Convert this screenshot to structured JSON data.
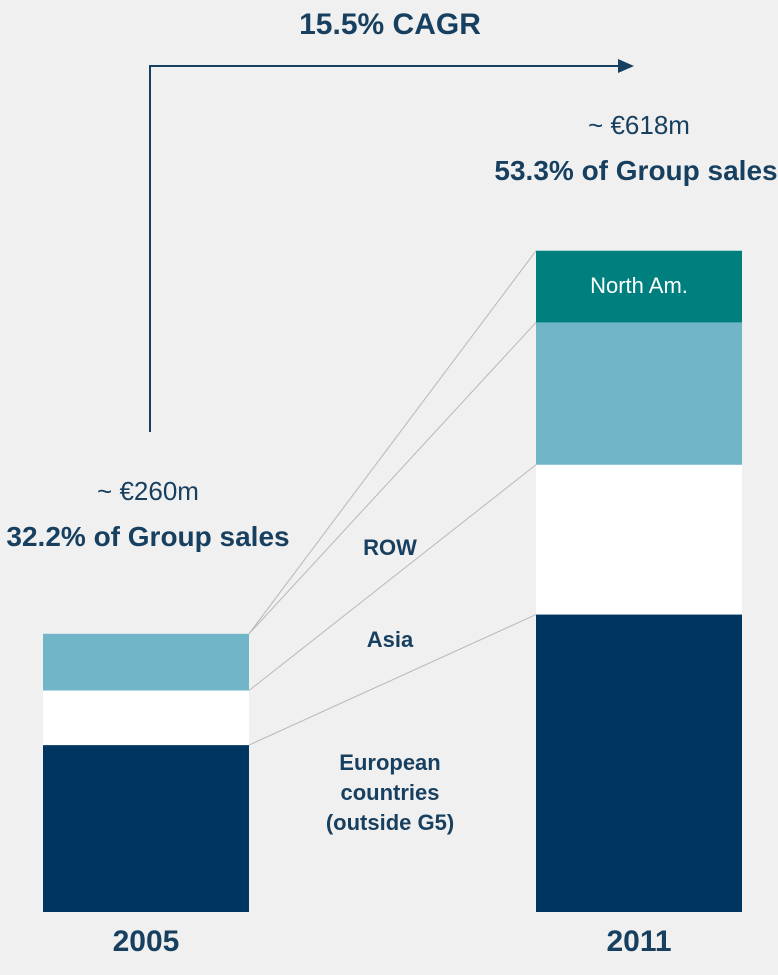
{
  "chart_data": {
    "type": "bar",
    "stacked": true,
    "categories": [
      "2005",
      "2011"
    ],
    "series": [
      {
        "name": "European countries (outside G5)",
        "color": "#003562",
        "values": [
          156,
          278
        ]
      },
      {
        "name": "Asia",
        "color": "#ffffff",
        "values": [
          51,
          140
        ]
      },
      {
        "name": "ROW",
        "color": "#70b5c8",
        "values": [
          53,
          133
        ]
      },
      {
        "name": "North Am.",
        "color": "#007f7f",
        "values": [
          0,
          67
        ]
      }
    ],
    "annotations": {
      "cagr": "15.5% CAGR",
      "totals": [
        "~ €260m",
        "~ €618m"
      ],
      "shares": [
        "32.2% of Group sales",
        "53.3% of Group sales"
      ]
    }
  }
}
